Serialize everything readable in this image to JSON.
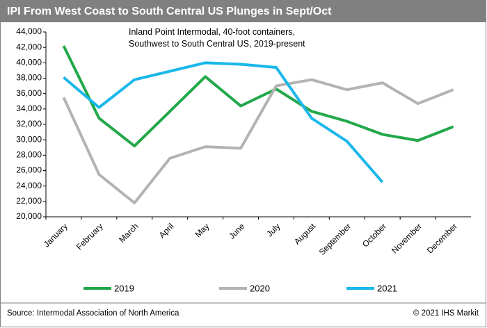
{
  "chart_data": {
    "type": "line",
    "title": "IPI From West Coast to South Central US Plunges in Sept/Oct",
    "annotation": "Inland Point Intermodal, 40-foot containers, Southwest to South Central US, 2019-present",
    "source": "Source: Intermodal Association of North America",
    "credit": "© 2021 IHS Markit",
    "categories": [
      "January",
      "February",
      "March",
      "April",
      "May",
      "June",
      "July",
      "August",
      "September",
      "October",
      "November",
      "December"
    ],
    "series": [
      {
        "name": "2019",
        "color": "#22a84a",
        "values": [
          42200,
          32800,
          29200,
          33700,
          38200,
          34400,
          36600,
          33700,
          32400,
          30700,
          29900,
          31700
        ]
      },
      {
        "name": "2020",
        "color": "#b3b3b3",
        "values": [
          35500,
          25500,
          21800,
          27600,
          29100,
          28900,
          37000,
          37800,
          36500,
          37400,
          34700,
          36500
        ]
      },
      {
        "name": "2021",
        "color": "#1ab7ea",
        "values": [
          38100,
          34200,
          37800,
          38900,
          40000,
          39800,
          39400,
          32800,
          29800,
          24500,
          null,
          null
        ]
      }
    ],
    "ylim": [
      20000,
      44000
    ],
    "yticks": [
      {
        "value": 20000,
        "label": "20,000"
      },
      {
        "value": 22000,
        "label": "22,000"
      },
      {
        "value": 24000,
        "label": "24,000"
      },
      {
        "value": 26000,
        "label": "26,000"
      },
      {
        "value": 28000,
        "label": "28,000"
      },
      {
        "value": 30000,
        "label": "30,000"
      },
      {
        "value": 32000,
        "label": "32,000"
      },
      {
        "value": 34000,
        "label": "34,000"
      },
      {
        "value": 36000,
        "label": "36,000"
      },
      {
        "value": 38000,
        "label": "38,000"
      },
      {
        "value": 40000,
        "label": "40,000"
      },
      {
        "value": 42000,
        "label": "42,000"
      },
      {
        "value": 44000,
        "label": "44,000"
      }
    ],
    "grid": false,
    "legend": "bottom"
  }
}
